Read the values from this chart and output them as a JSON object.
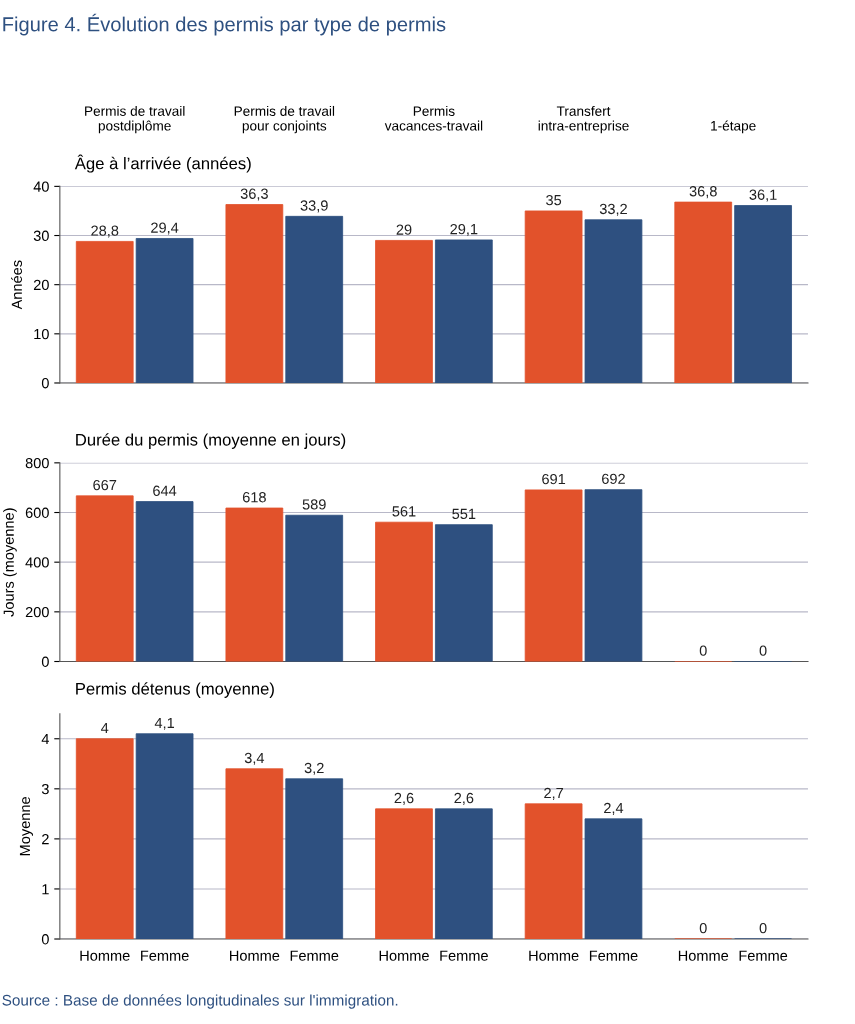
{
  "chart_data": [
    {
      "type": "bar",
      "title": "Figure 4. Évolution des permis par type de permis",
      "subtitle": "Âge à l’arrivée (années)",
      "ylabel": "Années",
      "categories": [
        "Permis de travail\npostdiplôme",
        "Permis de travail\npour conjoints",
        "Permis\nvacances-travail",
        "Transfert\nintra-entreprise",
        "1-étape"
      ],
      "series": [
        {
          "color": "#e2522b",
          "values": [
            28.8,
            36.3,
            29,
            35,
            36.8
          ],
          "value_labels": [
            "28,8",
            "36,3",
            "29",
            "35",
            "36,8"
          ]
        },
        {
          "color": "#2e5080",
          "values": [
            29.4,
            33.9,
            29.1,
            33.2,
            36.1
          ],
          "value_labels": [
            "29,4",
            "33,9",
            "29,1",
            "33,2",
            "36,1"
          ]
        }
      ],
      "ylim": [
        0,
        40
      ],
      "yticks": [
        0,
        10,
        20,
        30,
        40
      ],
      "grid": "y"
    },
    {
      "type": "bar",
      "subtitle": "Durée du permis (moyenne en jours)",
      "ylabel": "Jours (moyenne)",
      "categories": [
        null,
        null,
        null,
        null,
        null
      ],
      "series": [
        {
          "color": "#e2522b",
          "values": [
            667,
            618,
            561,
            691,
            0
          ],
          "value_labels": [
            "667",
            "618",
            "561",
            "691",
            "0"
          ]
        },
        {
          "color": "#2e5080",
          "values": [
            644,
            589,
            551,
            692,
            0
          ],
          "value_labels": [
            "644",
            "589",
            "551",
            "692",
            "0"
          ]
        }
      ],
      "ylim": [
        0,
        800
      ],
      "yticks": [
        0,
        200,
        400,
        600,
        800
      ],
      "grid": "y",
      "tick_labels": "y"
    },
    {
      "type": "bar",
      "subtitle": "Permis détenus (moyenne)",
      "ylabel": "Moyenne",
      "categories": [
        null,
        null,
        null,
        null,
        null
      ],
      "series": [
        {
          "name": "Homme",
          "color": "#e2522b",
          "values": [
            4,
            3.4,
            2.6,
            2.7,
            0
          ],
          "value_labels": [
            "4",
            "3,4",
            "2,6",
            "2,7",
            "0"
          ]
        },
        {
          "name": "Femme",
          "color": "#2e5080",
          "values": [
            4.1,
            3.2,
            2.6,
            2.4,
            0
          ],
          "value_labels": [
            "4,1",
            "3,2",
            "2,6",
            "2,4",
            "0"
          ]
        }
      ],
      "ylim": [
        0,
        4.5
      ],
      "yticks": [
        0,
        1,
        2,
        3,
        4
      ],
      "grid": "y",
      "tick_labels": "y",
      "legend": "bottom",
      "annotations": [
        "Source : Base de données longitudinales sur l'immigration."
      ]
    }
  ]
}
